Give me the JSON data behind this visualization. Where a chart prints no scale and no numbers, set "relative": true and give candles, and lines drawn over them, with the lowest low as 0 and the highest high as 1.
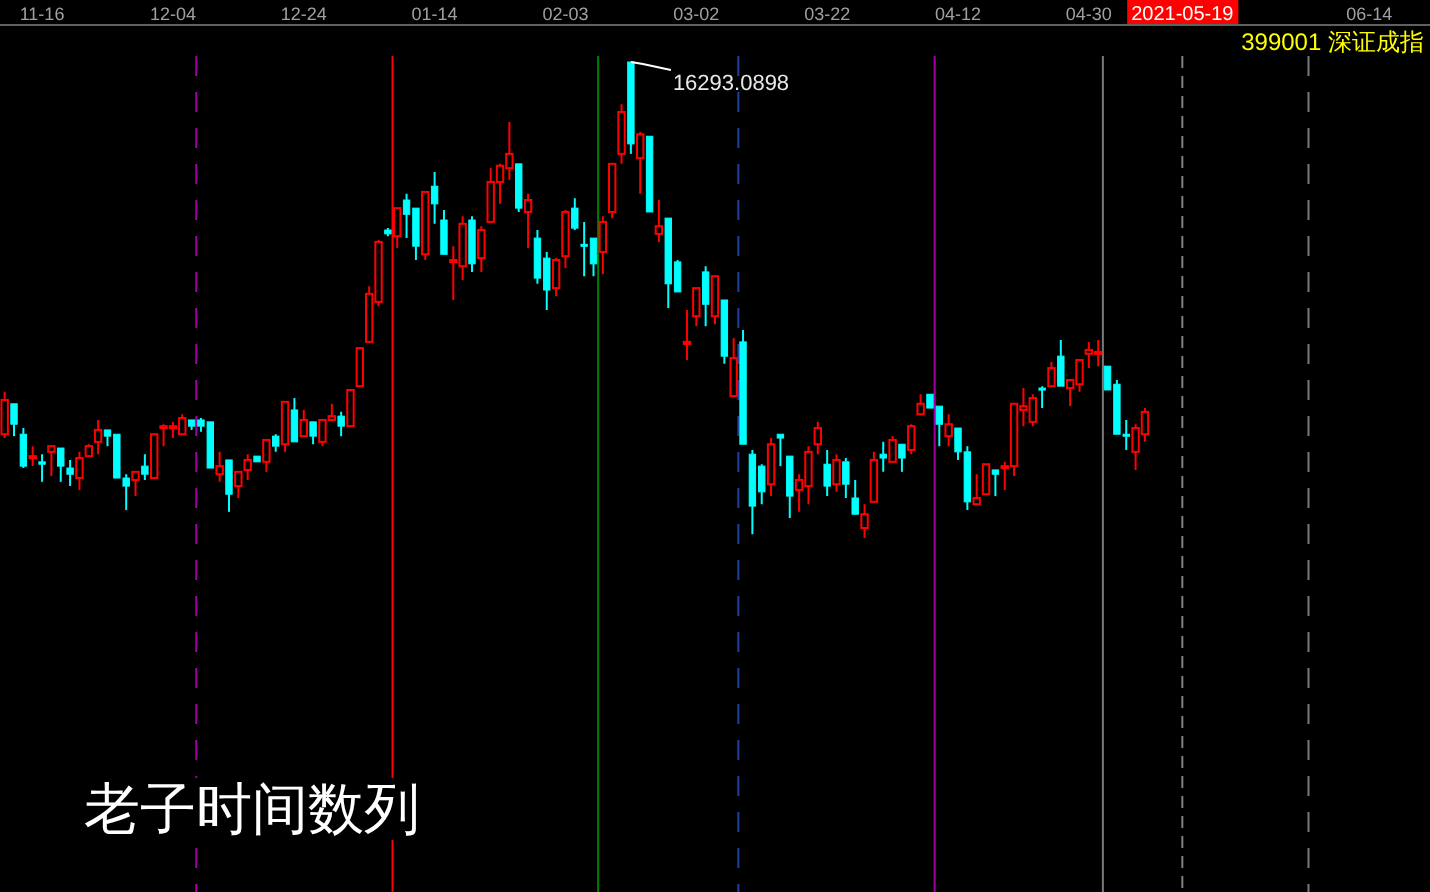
{
  "chart_data": {
    "type": "candlestick",
    "relative": true,
    "title": "399001 深证成指",
    "categories": [
      null,
      null,
      null,
      null,
      "11-16",
      null,
      null,
      null,
      null,
      null,
      null,
      null,
      null,
      null,
      null,
      null,
      null,
      null,
      "12-04",
      null,
      null,
      null,
      null,
      null,
      null,
      null,
      null,
      null,
      null,
      null,
      null,
      null,
      "12-24",
      null,
      null,
      null,
      null,
      null,
      null,
      null,
      null,
      null,
      null,
      null,
      null,
      null,
      "01-14",
      null,
      null,
      null,
      null,
      null,
      null,
      null,
      null,
      null,
      null,
      null,
      null,
      null,
      "02-03",
      null,
      null,
      null,
      null,
      null,
      null,
      null,
      null,
      null,
      null,
      null,
      null,
      null,
      "03-02",
      null,
      null,
      null,
      null,
      null,
      null,
      null,
      null,
      null,
      null,
      null,
      null,
      null,
      "03-22",
      null,
      null,
      null,
      null,
      null,
      null,
      null,
      null,
      null,
      null,
      null,
      null,
      null,
      "04-12",
      null,
      null,
      null,
      null,
      null,
      null,
      null,
      null,
      null,
      null,
      null,
      null,
      null,
      "04-30",
      null,
      null,
      null,
      null,
      null,
      null,
      null,
      null,
      null,
      "2021-05-19",
      null,
      null,
      null,
      null,
      null,
      null,
      null,
      null,
      null,
      null,
      null,
      null,
      null,
      null,
      null,
      null,
      null,
      null,
      null,
      "06-14",
      null,
      null,
      null,
      null,
      null,
      null
    ],
    "colors": [
      "#ff0000",
      "#00ffff",
      "#00ffff",
      "#ff0000",
      "#00ffff",
      "#ff0000",
      "#00ffff",
      "#00ffff",
      "#ff0000",
      "#ff0000",
      "#ff0000",
      "#00ffff",
      "#00ffff",
      "#00ffff",
      "#ff0000",
      "#00ffff",
      "#ff0000",
      "#ff0000",
      "#ff0000",
      "#ff0000",
      "#00ffff",
      "#00ffff",
      "#00ffff",
      "#ff0000",
      "#00ffff",
      "#ff0000",
      "#ff0000",
      "#00ffff",
      "#ff0000",
      "#00ffff",
      "#ff0000",
      "#00ffff",
      "#ff0000",
      "#00ffff",
      "#ff0000",
      "#ff0000",
      "#00ffff",
      "#ff0000",
      "#ff0000",
      "#ff0000",
      "#ff0000",
      "#00ffff",
      "#ff0000",
      "#00ffff",
      "#00ffff",
      "#ff0000",
      "#00ffff",
      "#00ffff",
      "#ff0000",
      "#ff0000",
      "#00ffff",
      "#ff0000",
      "#ff0000",
      "#ff0000",
      "#ff0000",
      "#00ffff",
      "#ff0000",
      "#00ffff",
      "#00ffff",
      "#ff0000",
      "#ff0000",
      "#00ffff",
      "#00ffff",
      "#00ffff",
      "#ff0000",
      "#ff0000",
      "#ff0000",
      "#00ffff",
      "#ff0000",
      "#00ffff",
      "#ff0000",
      "#00ffff",
      "#00ffff",
      "#ff0000",
      "#ff0000",
      "#00ffff",
      "#ff0000",
      "#00ffff",
      "#ff0000",
      "#00ffff",
      "#00ffff",
      "#00ffff",
      "#ff0000",
      "#00ffff",
      "#00ffff",
      "#ff0000",
      "#ff0000",
      "#ff0000",
      "#00ffff",
      "#ff0000",
      "#00ffff",
      "#00ffff",
      "#ff0000",
      "#ff0000",
      "#00ffff",
      "#ff0000",
      "#00ffff",
      "#ff0000",
      "#ff0000",
      "#00ffff",
      "#00ffff",
      "#ff0000",
      "#00ffff",
      "#00ffff",
      "#ff0000",
      "#ff0000",
      "#00ffff",
      "#ff0000",
      "#ff0000",
      "#ff0000",
      "#ff0000",
      "#00ffff",
      "#ff0000",
      "#00ffff",
      "#ff0000",
      "#ff0000",
      "#ff0000",
      "#ff0000",
      "#00ffff",
      "#00ffff",
      "#00ffff",
      "#ff0000",
      "#ff0000",
      null,
      null,
      null,
      null,
      null,
      null,
      null,
      null,
      null,
      null,
      null,
      null,
      null,
      null,
      null,
      null,
      null,
      null,
      null,
      null,
      null,
      null,
      null,
      null,
      null,
      null,
      null,
      null,
      null,
      null
    ],
    "ohlc": [
      [
        0.218,
        0.307,
        0.21,
        0.29
      ],
      [
        0.282,
        0.282,
        0.214,
        0.239
      ],
      [
        0.218,
        0.231,
        0.147,
        0.151
      ],
      [
        0.168,
        0.193,
        0.151,
        0.172
      ],
      [
        0.16,
        0.176,
        0.118,
        0.155
      ],
      [
        0.181,
        0.193,
        0.13,
        0.193
      ],
      [
        0.189,
        0.189,
        0.118,
        0.151
      ],
      [
        0.147,
        0.164,
        0.109,
        0.134
      ],
      [
        0.126,
        0.181,
        0.101,
        0.168
      ],
      [
        0.172,
        0.197,
        0.172,
        0.193
      ],
      [
        0.202,
        0.248,
        0.176,
        0.227
      ],
      [
        0.227,
        0.227,
        0.193,
        0.214
      ],
      [
        0.218,
        0.218,
        0.126,
        0.126
      ],
      [
        0.126,
        0.134,
        0.059,
        0.109
      ],
      [
        0.122,
        0.139,
        0.088,
        0.139
      ],
      [
        0.151,
        0.176,
        0.122,
        0.134
      ],
      [
        0.126,
        0.218,
        0.126,
        0.218
      ],
      [
        0.231,
        0.239,
        0.193,
        0.235
      ],
      [
        0.231,
        0.244,
        0.21,
        0.235
      ],
      [
        0.218,
        0.26,
        0.218,
        0.252
      ],
      [
        0.248,
        0.248,
        0.227,
        0.235
      ],
      [
        0.248,
        0.252,
        0.223,
        0.235
      ],
      [
        0.244,
        0.244,
        0.147,
        0.147
      ],
      [
        0.134,
        0.181,
        0.118,
        0.151
      ],
      [
        0.164,
        0.164,
        0.055,
        0.092
      ],
      [
        0.109,
        0.139,
        0.084,
        0.139
      ],
      [
        0.143,
        0.176,
        0.122,
        0.164
      ],
      [
        0.172,
        0.172,
        0.16,
        0.16
      ],
      [
        0.16,
        0.206,
        0.139,
        0.206
      ],
      [
        0.214,
        0.218,
        0.181,
        0.193
      ],
      [
        0.197,
        0.286,
        0.181,
        0.286
      ],
      [
        0.269,
        0.294,
        0.202,
        0.202
      ],
      [
        0.214,
        0.269,
        0.214,
        0.248
      ],
      [
        0.244,
        0.244,
        0.197,
        0.214
      ],
      [
        0.202,
        0.248,
        0.193,
        0.248
      ],
      [
        0.248,
        0.282,
        0.248,
        0.256
      ],
      [
        0.256,
        0.265,
        0.214,
        0.235
      ],
      [
        0.235,
        0.311,
        0.235,
        0.311
      ],
      [
        0.319,
        0.399,
        0.319,
        0.399
      ],
      [
        0.412,
        0.529,
        0.412,
        0.513
      ],
      [
        0.496,
        0.626,
        0.487,
        0.622
      ],
      [
        0.647,
        0.651,
        0.634,
        0.639
      ],
      [
        0.634,
        0.693,
        0.609,
        0.693
      ],
      [
        0.71,
        0.723,
        0.63,
        0.68
      ],
      [
        0.693,
        0.693,
        0.584,
        0.613
      ],
      [
        0.596,
        0.727,
        0.584,
        0.727
      ],
      [
        0.739,
        0.769,
        0.66,
        0.702
      ],
      [
        0.668,
        0.689,
        0.596,
        0.596
      ],
      [
        0.582,
        0.613,
        0.5,
        0.584
      ],
      [
        0.571,
        0.676,
        0.542,
        0.66
      ],
      [
        0.668,
        0.676,
        0.559,
        0.576
      ],
      [
        0.588,
        0.655,
        0.559,
        0.647
      ],
      [
        0.664,
        0.777,
        0.664,
        0.748
      ],
      [
        0.748,
        0.786,
        0.702,
        0.782
      ],
      [
        0.777,
        0.874,
        0.752,
        0.807
      ],
      [
        0.786,
        0.786,
        0.685,
        0.693
      ],
      [
        0.685,
        0.723,
        0.609,
        0.71
      ],
      [
        0.63,
        0.647,
        0.534,
        0.546
      ],
      [
        0.588,
        0.601,
        0.479,
        0.521
      ],
      [
        0.525,
        0.588,
        0.508,
        0.584
      ],
      [
        0.592,
        0.689,
        0.567,
        0.685
      ],
      [
        0.693,
        0.714,
        0.647,
        0.651
      ],
      [
        0.617,
        0.664,
        0.55,
        0.613
      ],
      [
        0.63,
        0.63,
        0.55,
        0.576
      ],
      [
        0.601,
        0.676,
        0.554,
        0.664
      ],
      [
        0.685,
        0.786,
        0.672,
        0.786
      ],
      [
        0.807,
        0.911,
        0.786,
        0.895
      ],
      [
        1,
        1,
        0.807,
        0.828
      ],
      [
        0.798,
        0.853,
        0.723,
        0.848
      ],
      [
        0.844,
        0.844,
        0.685,
        0.685
      ],
      [
        0.639,
        0.71,
        0.622,
        0.655
      ],
      [
        0.672,
        0.672,
        0.483,
        0.534
      ],
      [
        0.58,
        0.584,
        0.517,
        0.517
      ],
      [
        0.408,
        0.479,
        0.374,
        0.412
      ],
      [
        0.466,
        0.525,
        0.445,
        0.525
      ],
      [
        0.559,
        0.571,
        0.445,
        0.491
      ],
      [
        0.466,
        0.55,
        0.449,
        0.55
      ],
      [
        0.5,
        0.5,
        0.366,
        0.382
      ],
      [
        0.298,
        0.42,
        0.298,
        0.378
      ],
      [
        0.412,
        0.437,
        0.197,
        0.197
      ],
      [
        0.176,
        0.185,
        0.008,
        0.067
      ],
      [
        0.151,
        0.155,
        0.071,
        0.097
      ],
      [
        0.113,
        0.21,
        0.088,
        0.197
      ],
      [
        0.218,
        0.218,
        0.151,
        0.21
      ],
      [
        0.172,
        0.172,
        0.042,
        0.088
      ],
      [
        0.101,
        0.134,
        0.055,
        0.122
      ],
      [
        0.109,
        0.193,
        0.071,
        0.181
      ],
      [
        0.197,
        0.244,
        0.176,
        0.231
      ],
      [
        0.155,
        0.185,
        0.088,
        0.109
      ],
      [
        0.113,
        0.176,
        0.097,
        0.164
      ],
      [
        0.16,
        0.168,
        0.084,
        0.113
      ],
      [
        0.084,
        0.122,
        0.05,
        0.05
      ],
      [
        0.021,
        0.071,
        0,
        0.05
      ],
      [
        0.076,
        0.181,
        0.076,
        0.164
      ],
      [
        0.176,
        0.202,
        0.139,
        0.168
      ],
      [
        0.16,
        0.214,
        0.16,
        0.206
      ],
      [
        0.197,
        0.197,
        0.139,
        0.168
      ],
      [
        0.185,
        0.239,
        0.176,
        0.235
      ],
      [
        0.26,
        0.302,
        0.26,
        0.282
      ],
      [
        0.302,
        0.302,
        0.273,
        0.273
      ],
      [
        0.277,
        0.277,
        0.193,
        0.239
      ],
      [
        0.214,
        0.26,
        0.193,
        0.239
      ],
      [
        0.231,
        0.231,
        0.164,
        0.181
      ],
      [
        0.181,
        0.193,
        0.059,
        0.076
      ],
      [
        0.071,
        0.134,
        0.071,
        0.084
      ],
      [
        0.092,
        0.155,
        0.092,
        0.155
      ],
      [
        0.143,
        0.143,
        0.088,
        0.134
      ],
      [
        0.149,
        0.16,
        0.101,
        0.151
      ],
      [
        0.151,
        0.282,
        0.13,
        0.282
      ],
      [
        0.269,
        0.315,
        0.235,
        0.277
      ],
      [
        0.244,
        0.302,
        0.235,
        0.294
      ],
      [
        0.315,
        0.319,
        0.273,
        0.311
      ],
      [
        0.319,
        0.37,
        0.319,
        0.357
      ],
      [
        0.382,
        0.416,
        0.319,
        0.319
      ],
      [
        0.315,
        0.332,
        0.277,
        0.332
      ],
      [
        0.323,
        0.374,
        0.307,
        0.374
      ],
      [
        0.387,
        0.412,
        0.357,
        0.395
      ],
      [
        0.387,
        0.416,
        0.361,
        0.391
      ],
      [
        0.361,
        0.361,
        0.311,
        0.311
      ],
      [
        0.323,
        0.332,
        0.218,
        0.218
      ],
      [
        0.218,
        0.248,
        0.185,
        0.214
      ],
      [
        0.181,
        0.239,
        0.143,
        0.231
      ],
      [
        0.218,
        0.273,
        0.202,
        0.265
      ],
      null,
      null,
      null,
      null,
      null,
      null,
      null,
      null,
      null,
      null,
      null,
      null,
      null,
      null,
      null,
      null,
      null,
      null,
      null,
      null,
      null,
      null,
      null,
      null,
      null,
      null,
      null,
      null,
      null,
      null
    ],
    "ref_lines": [
      {
        "axis": "x",
        "value": "2021-05-19",
        "color": "#808080",
        "line_style": "dashed"
      }
    ],
    "annotations": [
      "16293.0898",
      "老子时间数列"
    ]
  }
}
